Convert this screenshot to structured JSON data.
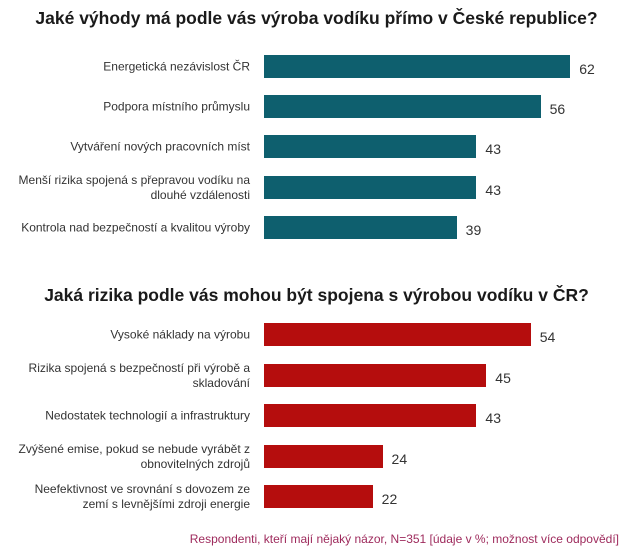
{
  "chart_data": [
    {
      "type": "bar",
      "orientation": "horizontal",
      "title": "Jaké výhody má podle vás výroba vodíku přímo v České republice?",
      "categories": [
        "Energetická nezávislost ČR",
        "Podpora místního průmyslu",
        "Vytváření nových pracovních míst",
        "Menší rizika spojená s přepravou vodíku na dlouhé vzdálenosti",
        "Kontrola nad bezpečností a kvalitou výroby"
      ],
      "values": [
        62,
        56,
        43,
        43,
        39
      ],
      "color": "#0e5f6e",
      "xlim": [
        0,
        100
      ]
    },
    {
      "type": "bar",
      "orientation": "horizontal",
      "title": "Jaká rizika podle vás mohou být spojena s výrobou vodíku v ČR?",
      "categories": [
        "Vysoké náklady na výrobu",
        "Rizika spojená s bezpečností při výrobě a skladování",
        "Nedostatek technologií a infrastruktury",
        "Zvýšené emise, pokud se nebude vyrábět z obnovitelných zdrojů",
        "Neefektivnost ve srovnání s dovozem ze zemí s levnějšími zdroji energie"
      ],
      "values": [
        54,
        45,
        43,
        24,
        22
      ],
      "color": "#b50d0d",
      "xlim": [
        0,
        100
      ]
    }
  ],
  "footer": "Respondenti, kteří mají nějaký názor, N=351 [údaje v %; možnost více odpovědí]"
}
